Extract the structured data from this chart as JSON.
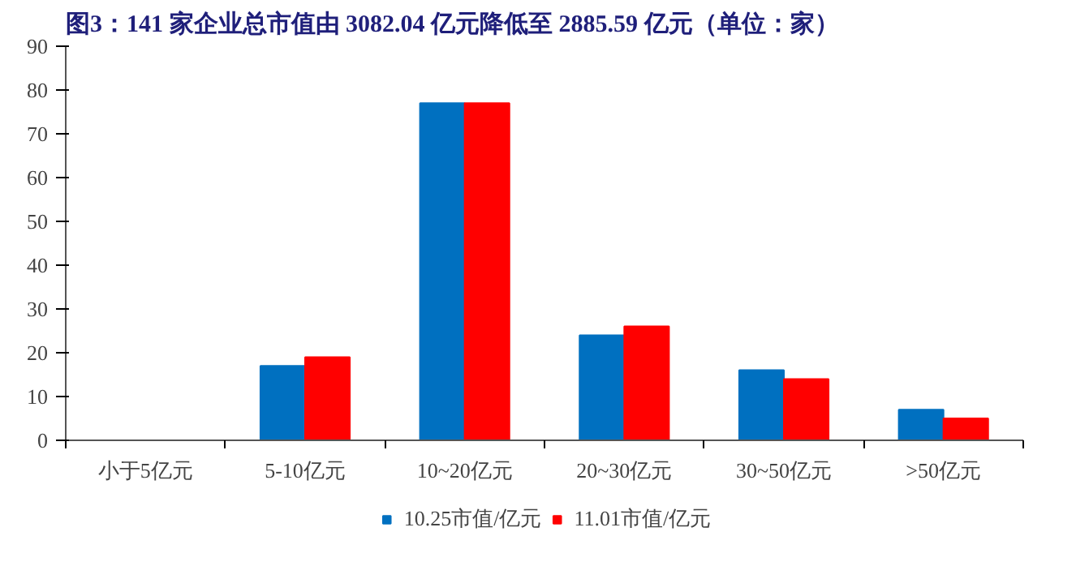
{
  "chart_data": {
    "type": "bar",
    "title": "图3：141 家企业总市值由 3082.04 亿元降低至 2885.59 亿元（单位：家）",
    "categories": [
      "小于5亿元",
      "5-10亿元",
      "10~20亿元",
      "20~30亿元",
      "30~50亿元",
      ">50亿元"
    ],
    "series": [
      {
        "name": "10.25市值/亿元",
        "color": "#0070c0",
        "values": [
          0,
          17,
          77,
          24,
          16,
          7
        ]
      },
      {
        "name": "11.01市值/亿元",
        "color": "#ff0000",
        "values": [
          0,
          19,
          77,
          26,
          14,
          5
        ]
      }
    ],
    "ylim": [
      0,
      90
    ],
    "yticks": [
      0,
      10,
      20,
      30,
      40,
      50,
      60,
      70,
      80,
      90
    ],
    "grid": false,
    "legend": "bottom"
  }
}
